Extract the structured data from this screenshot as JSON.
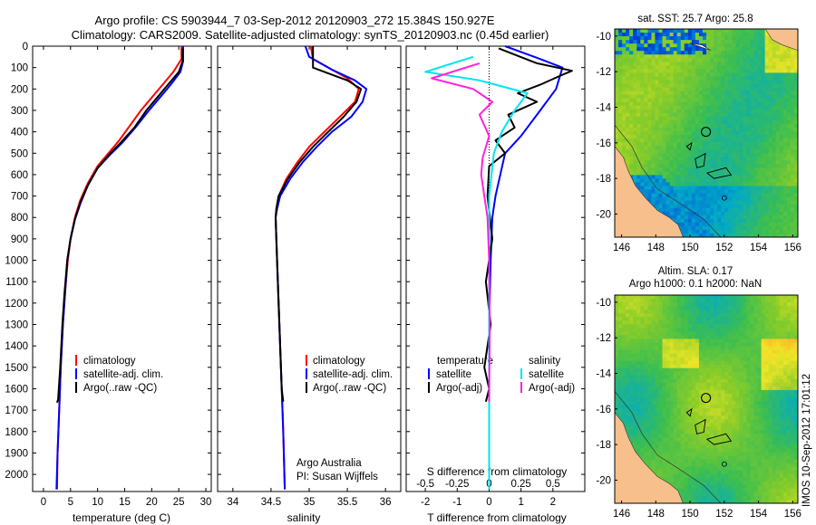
{
  "title": {
    "line1": "Argo profile: CS 5903944_7 03-Sep-2012 20120903_272 15.384S 150.927E",
    "line2": "Climatology: CARS2009. Satellite-adjusted climatology: synTS_20120903.nc (0.45d earlier)"
  },
  "colors": {
    "clim": "#ff0000",
    "sat": "#0000ff",
    "argo": "#000000",
    "cyan": "#00e5ee",
    "magenta": "#ff22dd",
    "land": "#f7bf8c"
  },
  "chart_data": [
    {
      "type": "line",
      "panel": "temperature",
      "xlabel": "temperature (deg C)",
      "xlim": [
        -2,
        31
      ],
      "ylim": [
        2080,
        0
      ],
      "x_ticks": [
        "0",
        "5",
        "10",
        "15",
        "20",
        "25",
        "30"
      ],
      "x_tick_values": [
        0,
        5,
        10,
        15,
        20,
        25,
        30
      ],
      "y_ticks": [
        "0",
        "100",
        "200",
        "300",
        "400",
        "500",
        "600",
        "700",
        "800",
        "900",
        "1000",
        "1100",
        "1200",
        "1300",
        "1400",
        "1500",
        "1600",
        "1700",
        "1800",
        "1900",
        "2000"
      ],
      "y_tick_values": [
        0,
        100,
        200,
        300,
        400,
        500,
        600,
        700,
        800,
        900,
        1000,
        1100,
        1200,
        1300,
        1400,
        1500,
        1600,
        1700,
        1800,
        1900,
        2000
      ],
      "legend": [
        "climatology",
        "satellite-adj. clim.",
        "Argo(..raw -QC)"
      ],
      "series": [
        {
          "name": "climatology",
          "color": "red",
          "points": [
            [
              25.5,
              0
            ],
            [
              25.5,
              60
            ],
            [
              24,
              120
            ],
            [
              22,
              180
            ],
            [
              20,
              240
            ],
            [
              18,
              300
            ],
            [
              16,
              370
            ],
            [
              14,
              440
            ],
            [
              12,
              500
            ],
            [
              10,
              560
            ],
            [
              8.2,
              640
            ],
            [
              6.8,
              720
            ],
            [
              5.8,
              800
            ],
            [
              5,
              900
            ],
            [
              4.5,
              1000
            ],
            [
              4,
              1150
            ],
            [
              3.6,
              1300
            ],
            [
              3.2,
              1500
            ],
            [
              2.9,
              1700
            ],
            [
              2.6,
              1900
            ],
            [
              2.5,
              2070
            ]
          ]
        },
        {
          "name": "satellite-adj. clim.",
          "color": "blue",
          "points": [
            [
              25.8,
              0
            ],
            [
              25.8,
              70
            ],
            [
              25.3,
              120
            ],
            [
              23.5,
              180
            ],
            [
              21.5,
              240
            ],
            [
              19.5,
              300
            ],
            [
              17,
              380
            ],
            [
              14.6,
              450
            ],
            [
              12.2,
              510
            ],
            [
              10,
              570
            ],
            [
              8.2,
              650
            ],
            [
              6.9,
              730
            ],
            [
              5.8,
              810
            ],
            [
              5,
              900
            ],
            [
              4.4,
              1000
            ],
            [
              4,
              1150
            ],
            [
              3.6,
              1300
            ],
            [
              3.2,
              1500
            ],
            [
              2.9,
              1700
            ],
            [
              2.6,
              1900
            ],
            [
              2.4,
              2070
            ]
          ]
        },
        {
          "name": "Argo(..raw -QC)",
          "color": "black",
          "points": [
            [
              25.7,
              10
            ],
            [
              25.7,
              70
            ],
            [
              25,
              120
            ],
            [
              23,
              180
            ],
            [
              21,
              240
            ],
            [
              19,
              300
            ],
            [
              16.8,
              380
            ],
            [
              14.3,
              450
            ],
            [
              12,
              510
            ],
            [
              10,
              570
            ],
            [
              8.2,
              650
            ],
            [
              6.8,
              730
            ],
            [
              5.8,
              810
            ],
            [
              5,
              900
            ],
            [
              4.4,
              1000
            ],
            [
              3.9,
              1150
            ],
            [
              3.5,
              1300
            ],
            [
              3.1,
              1500
            ],
            [
              2.7,
              1650
            ],
            [
              2.5,
              1665
            ]
          ]
        }
      ]
    },
    {
      "type": "line",
      "panel": "salinity",
      "xlabel": "salinity",
      "xlim": [
        33.8,
        36.2
      ],
      "ylim": [
        2080,
        0
      ],
      "x_ticks": [
        "34",
        "34.5",
        "35",
        "35.5",
        "36"
      ],
      "x_tick_values": [
        34,
        34.5,
        35,
        35.5,
        36
      ],
      "legend": [
        "climatology",
        "satellite-adj. clim.",
        "Argo(..raw -QC)"
      ],
      "annotation": [
        "Argo Australia",
        "PI: Susan Wijffels"
      ],
      "series": [
        {
          "name": "climatology",
          "color": "red",
          "points": [
            [
              35.02,
              0
            ],
            [
              35.05,
              60
            ],
            [
              35.3,
              110
            ],
            [
              35.5,
              150
            ],
            [
              35.65,
              200
            ],
            [
              35.6,
              260
            ],
            [
              35.4,
              330
            ],
            [
              35.2,
              400
            ],
            [
              35.0,
              470
            ],
            [
              34.85,
              540
            ],
            [
              34.7,
              620
            ],
            [
              34.6,
              700
            ],
            [
              34.57,
              760
            ],
            [
              34.56,
              800
            ],
            [
              34.57,
              900
            ],
            [
              34.58,
              1000
            ],
            [
              34.6,
              1200
            ],
            [
              34.62,
              1400
            ],
            [
              34.64,
              1600
            ],
            [
              34.66,
              1800
            ],
            [
              34.68,
              2070
            ]
          ]
        },
        {
          "name": "satellite-adj. clim.",
          "color": "blue",
          "points": [
            [
              34.95,
              0
            ],
            [
              35.0,
              50
            ],
            [
              35.3,
              110
            ],
            [
              35.6,
              160
            ],
            [
              35.75,
              200
            ],
            [
              35.7,
              260
            ],
            [
              35.55,
              330
            ],
            [
              35.3,
              400
            ],
            [
              35.1,
              470
            ],
            [
              34.92,
              540
            ],
            [
              34.75,
              620
            ],
            [
              34.62,
              700
            ],
            [
              34.58,
              760
            ],
            [
              34.56,
              800
            ],
            [
              34.57,
              900
            ],
            [
              34.58,
              1000
            ],
            [
              34.6,
              1200
            ],
            [
              34.62,
              1400
            ],
            [
              34.64,
              1600
            ],
            [
              34.66,
              1800
            ],
            [
              34.68,
              2070
            ]
          ]
        },
        {
          "name": "Argo(..raw -QC)",
          "color": "black",
          "points": [
            [
              35.05,
              0
            ],
            [
              35.05,
              100
            ],
            [
              35.2,
              120
            ],
            [
              35.5,
              160
            ],
            [
              35.68,
              200
            ],
            [
              35.62,
              260
            ],
            [
              35.45,
              330
            ],
            [
              35.25,
              400
            ],
            [
              35.05,
              470
            ],
            [
              34.88,
              540
            ],
            [
              34.72,
              620
            ],
            [
              34.6,
              700
            ],
            [
              34.57,
              760
            ],
            [
              34.56,
              800
            ],
            [
              34.57,
              900
            ],
            [
              34.58,
              1000
            ],
            [
              34.6,
              1200
            ],
            [
              34.62,
              1400
            ],
            [
              34.64,
              1600
            ],
            [
              34.66,
              1660
            ]
          ]
        }
      ]
    },
    {
      "type": "line",
      "panel": "difference",
      "xlabel": "T difference from climatology",
      "xlabel_top": "S difference from climatology",
      "xlim": [
        -2.6,
        3
      ],
      "ylim": [
        2080,
        0
      ],
      "x_ticks": [
        "-2",
        "-1",
        "0",
        "1",
        "2"
      ],
      "x_tick_values": [
        -2,
        -1,
        0,
        1,
        2
      ],
      "x_ticks_top": [
        "-0.5",
        "-0.25",
        "0",
        "0.25",
        "0.5"
      ],
      "x_ticks_top_values": [
        -2,
        -1,
        0,
        1,
        2
      ],
      "legend_left_title": "temperature",
      "legend_right_title": "salinity",
      "legend": [
        "satellite",
        "Argo(-adj)",
        "satellite",
        "Argo(-adj)"
      ],
      "series": [
        {
          "name": "T satellite",
          "color": "blue",
          "points": [
            [
              0.5,
              0
            ],
            [
              1.6,
              60
            ],
            [
              2.3,
              100
            ],
            [
              2.1,
              200
            ],
            [
              1.6,
              300
            ],
            [
              1,
              420
            ],
            [
              0.5,
              500
            ],
            [
              0.35,
              600
            ],
            [
              0.2,
              700
            ],
            [
              0.1,
              800
            ],
            [
              0.05,
              1000
            ],
            [
              0,
              1300
            ],
            [
              0,
              2070
            ]
          ]
        },
        {
          "name": "T Argo(-adj)",
          "color": "black",
          "points": [
            [
              0.3,
              10
            ],
            [
              1.5,
              80
            ],
            [
              2.6,
              115
            ],
            [
              2.2,
              140
            ],
            [
              1.6,
              180
            ],
            [
              0.9,
              220
            ],
            [
              1.5,
              260
            ],
            [
              0.6,
              320
            ],
            [
              0.8,
              380
            ],
            [
              0.2,
              440
            ],
            [
              0.5,
              500
            ],
            [
              0,
              560
            ],
            [
              -0.05,
              700
            ],
            [
              0.1,
              900
            ],
            [
              -0.1,
              1100
            ],
            [
              0.05,
              1300
            ],
            [
              -0.15,
              1500
            ],
            [
              0,
              1600
            ],
            [
              -0.1,
              1660
            ]
          ]
        },
        {
          "name": "S satellite",
          "color": "cyan",
          "points": [
            [
              -0.5,
              50
            ],
            [
              -2.0,
              120
            ],
            [
              -0.3,
              160
            ],
            [
              1.2,
              220
            ],
            [
              0.8,
              300
            ],
            [
              0.4,
              400
            ],
            [
              0.15,
              500
            ],
            [
              0,
              700
            ],
            [
              0,
              2070
            ]
          ]
        },
        {
          "name": "S Argo(-adj)",
          "color": "magenta",
          "points": [
            [
              -0.3,
              80
            ],
            [
              -1.8,
              150
            ],
            [
              -0.5,
              200
            ],
            [
              0.1,
              260
            ],
            [
              -0.3,
              320
            ],
            [
              0,
              420
            ],
            [
              -0.2,
              520
            ],
            [
              -0.25,
              600
            ],
            [
              -0.15,
              700
            ],
            [
              -0.05,
              800
            ],
            [
              0,
              1000
            ],
            [
              0.02,
              1300
            ],
            [
              0,
              1660
            ]
          ]
        }
      ]
    },
    {
      "type": "heatmap",
      "panel": "sst-map",
      "title": "sat. SST: 25.7 Argo: 25.8",
      "x_ticks": [
        "146",
        "148",
        "150",
        "152",
        "154",
        "156"
      ],
      "x_tick_values": [
        146,
        148,
        150,
        152,
        154,
        156
      ],
      "y_ticks": [
        "-10",
        "-12",
        "-14",
        "-16",
        "-18",
        "-20"
      ],
      "y_tick_values": [
        -10,
        -12,
        -14,
        -16,
        -18,
        -20
      ],
      "xlim": [
        145.6,
        156.3
      ],
      "ylim": [
        -21.3,
        -9.6
      ],
      "argo_marker": [
        150.93,
        -15.38
      ]
    },
    {
      "type": "heatmap",
      "panel": "sla-map",
      "title_line1": "Altim. SLA: 0.17",
      "title_line2": "Argo h1000: 0.1 h2000: NaN",
      "x_ticks": [
        "146",
        "148",
        "150",
        "152",
        "154",
        "156"
      ],
      "x_tick_values": [
        146,
        148,
        150,
        152,
        154,
        156
      ],
      "y_ticks": [
        "-10",
        "-12",
        "-14",
        "-16",
        "-18",
        "-20"
      ],
      "y_tick_values": [
        -10,
        -12,
        -14,
        -16,
        -18,
        -20
      ],
      "xlim": [
        145.6,
        156.3
      ],
      "ylim": [
        -21.3,
        -9.6
      ],
      "argo_marker": [
        150.93,
        -15.38
      ]
    }
  ],
  "side_label": "IMOS 10-Sep-2012 17:01:12"
}
